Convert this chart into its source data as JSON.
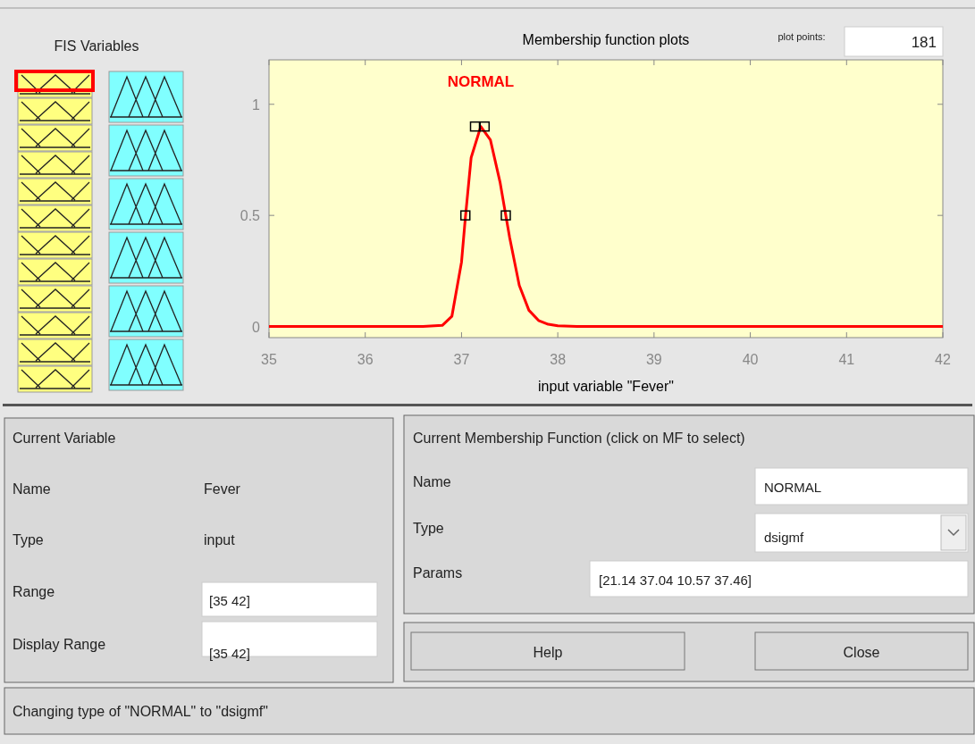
{
  "chart_data": [
    {
      "type": "line",
      "title": "Membership function plots",
      "xlabel": "input variable \"Fever\"",
      "xlim": [
        35,
        42
      ],
      "xticks": [
        35,
        36,
        37,
        38,
        39,
        40,
        41,
        42
      ],
      "ylim": [
        -0.05,
        1.2
      ],
      "yticks": [
        0,
        0.5,
        1
      ],
      "series": [
        {
          "name": "NORMAL",
          "color": "#ff0000",
          "x": [
            35,
            36,
            36.6,
            36.8,
            36.9,
            37.0,
            37.04,
            37.1,
            37.2,
            37.3,
            37.4,
            37.46,
            37.5,
            37.6,
            37.7,
            37.8,
            37.9,
            38.0,
            38.2,
            39,
            40,
            41,
            42
          ],
          "values": [
            0,
            0,
            0,
            0.005,
            0.046,
            0.29,
            0.49,
            0.76,
            0.9,
            0.84,
            0.65,
            0.5,
            0.4,
            0.185,
            0.073,
            0.027,
            0.01,
            0.003,
            0,
            0,
            0,
            0,
            0
          ]
        },
        {
          "type": "scatter",
          "marker": "square",
          "color": "#000000",
          "x": [
            37.04,
            37.14,
            37.24,
            37.46
          ],
          "values": [
            0.5,
            0.9,
            0.9,
            0.5
          ]
        }
      ]
    },
    {
      "type": "other",
      "annotations": [
        "FIS Variables",
        "plot points:",
        "181",
        "Current Variable",
        "Name",
        "Fever",
        "Type",
        "input",
        "Range",
        "[35 42]",
        "Display Range",
        "[35 42]",
        "Current Membership Function (click on MF to select)",
        "Name",
        "NORMAL",
        "Type",
        "dsigmf",
        "Params",
        "[21.14 37.04 10.57 37.46]",
        "Help",
        "Close",
        "Changing type of \"NORMAL\" to \"dsigmf\""
      ]
    }
  ]
}
